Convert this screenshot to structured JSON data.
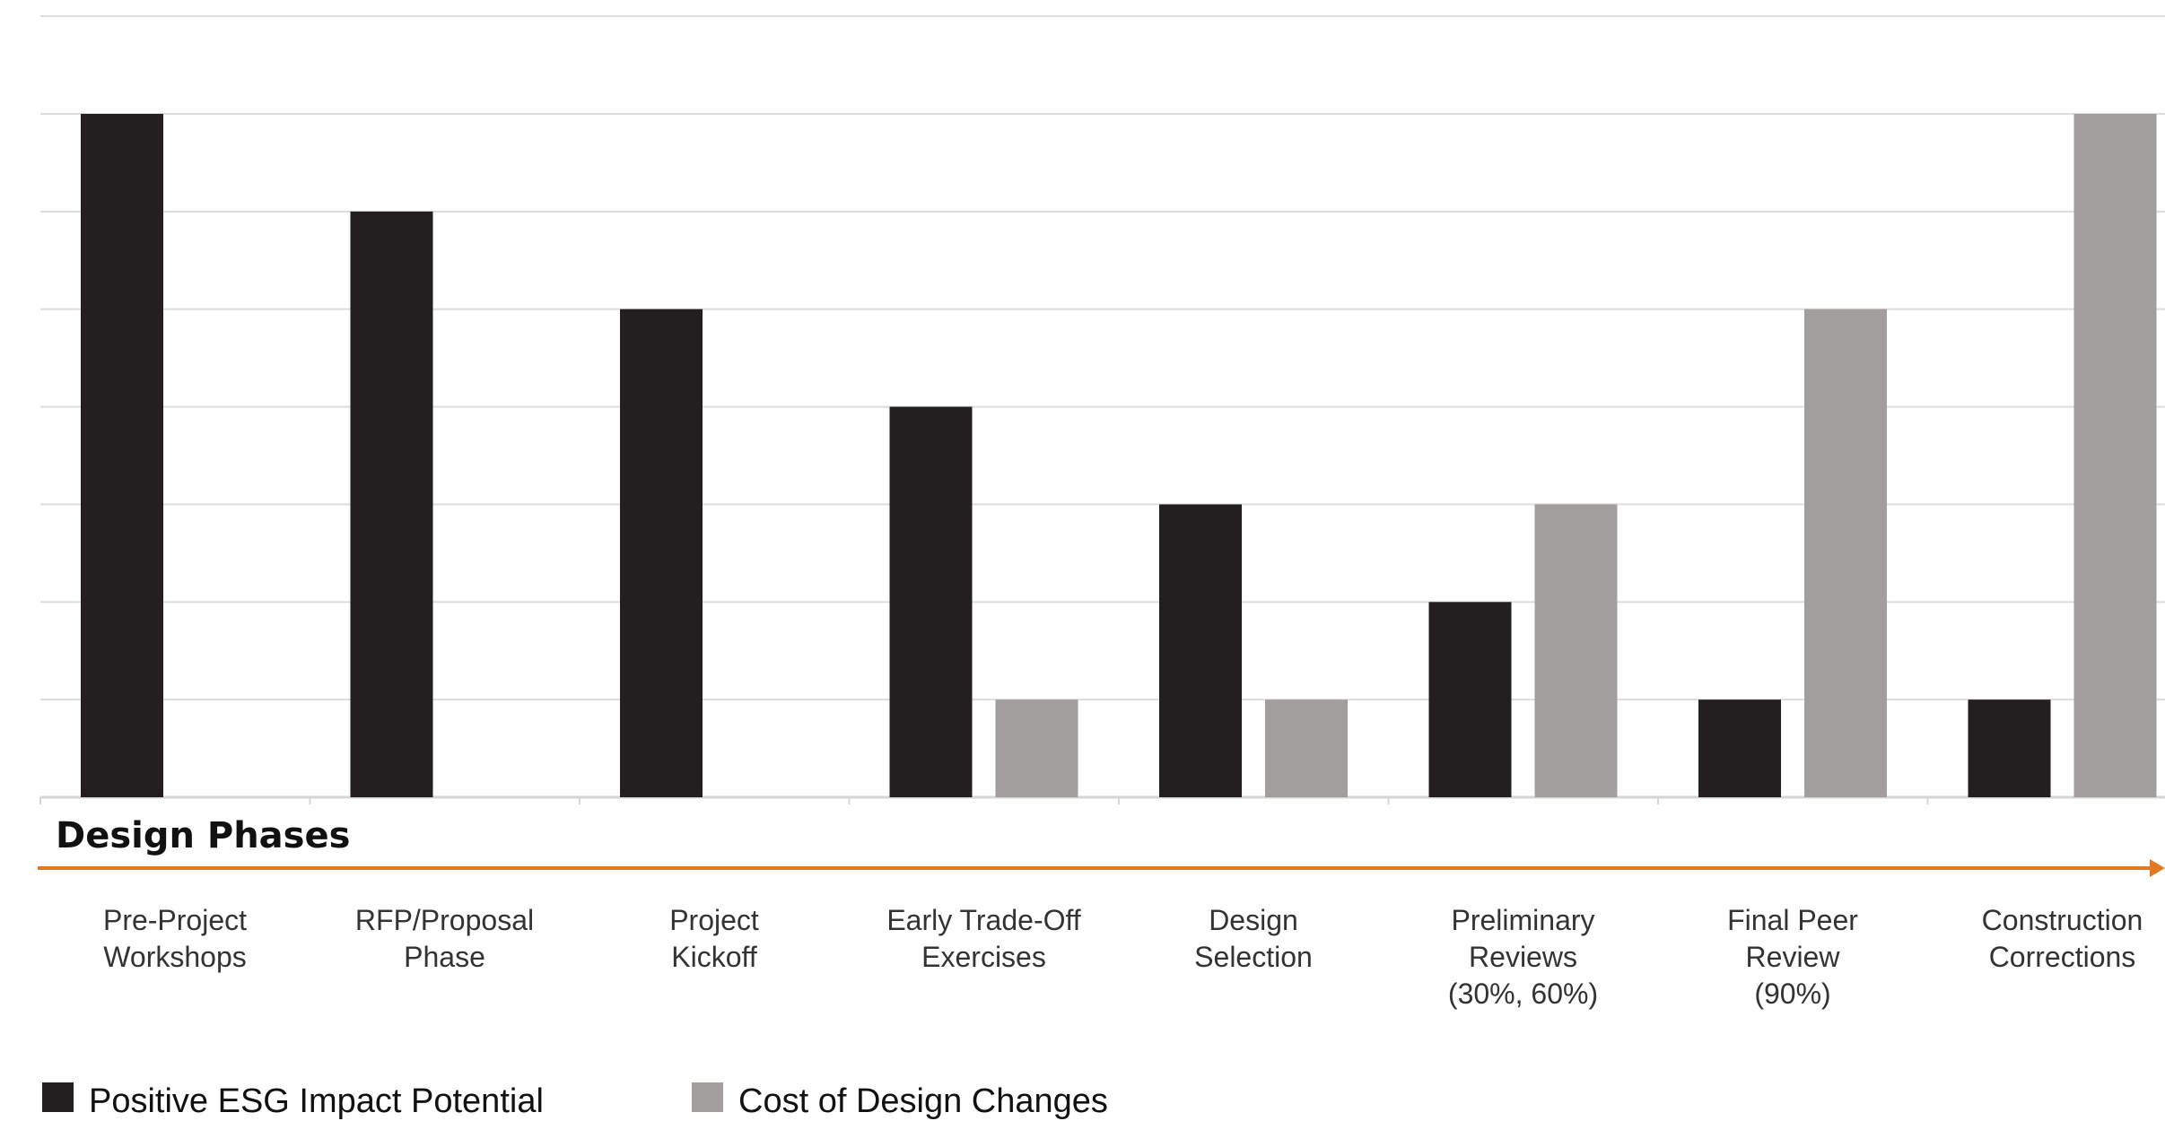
{
  "chart_data": {
    "type": "bar",
    "categories": [
      "Pre-Project Workshops",
      "RFP/Proposal Phase",
      "Project Kickoff",
      "Early Trade-Off Exercises",
      "Design Selection",
      "Preliminary Reviews (30%, 60%)",
      "Final Peer Review (90%)",
      "Construction Corrections"
    ],
    "category_lines": [
      [
        "Pre-Project",
        "Workshops"
      ],
      [
        "RFP/Proposal",
        "Phase"
      ],
      [
        "Project",
        "Kickoff"
      ],
      [
        "Early Trade-Off",
        "Exercises"
      ],
      [
        "Design",
        "Selection"
      ],
      [
        "Preliminary",
        "Reviews",
        "(30%, 60%)"
      ],
      [
        "Final Peer",
        "Review",
        "(90%)"
      ],
      [
        "Construction",
        "Corrections"
      ]
    ],
    "series": [
      {
        "name": "Positive ESG Impact Potential",
        "color": "#231f20",
        "values": [
          7,
          6,
          5,
          4,
          3,
          2,
          1,
          1
        ]
      },
      {
        "name": "Cost of Design Changes",
        "color": "#a19e9d",
        "values": [
          0,
          0,
          0,
          1,
          1,
          3,
          5,
          7
        ]
      }
    ],
    "ylim": [
      0,
      7
    ],
    "grid": true,
    "xlabel": "Design Phases",
    "ylabel": "",
    "title": "",
    "legend_position": "bottom-left",
    "axis_arrow_color": "#e07a25"
  }
}
